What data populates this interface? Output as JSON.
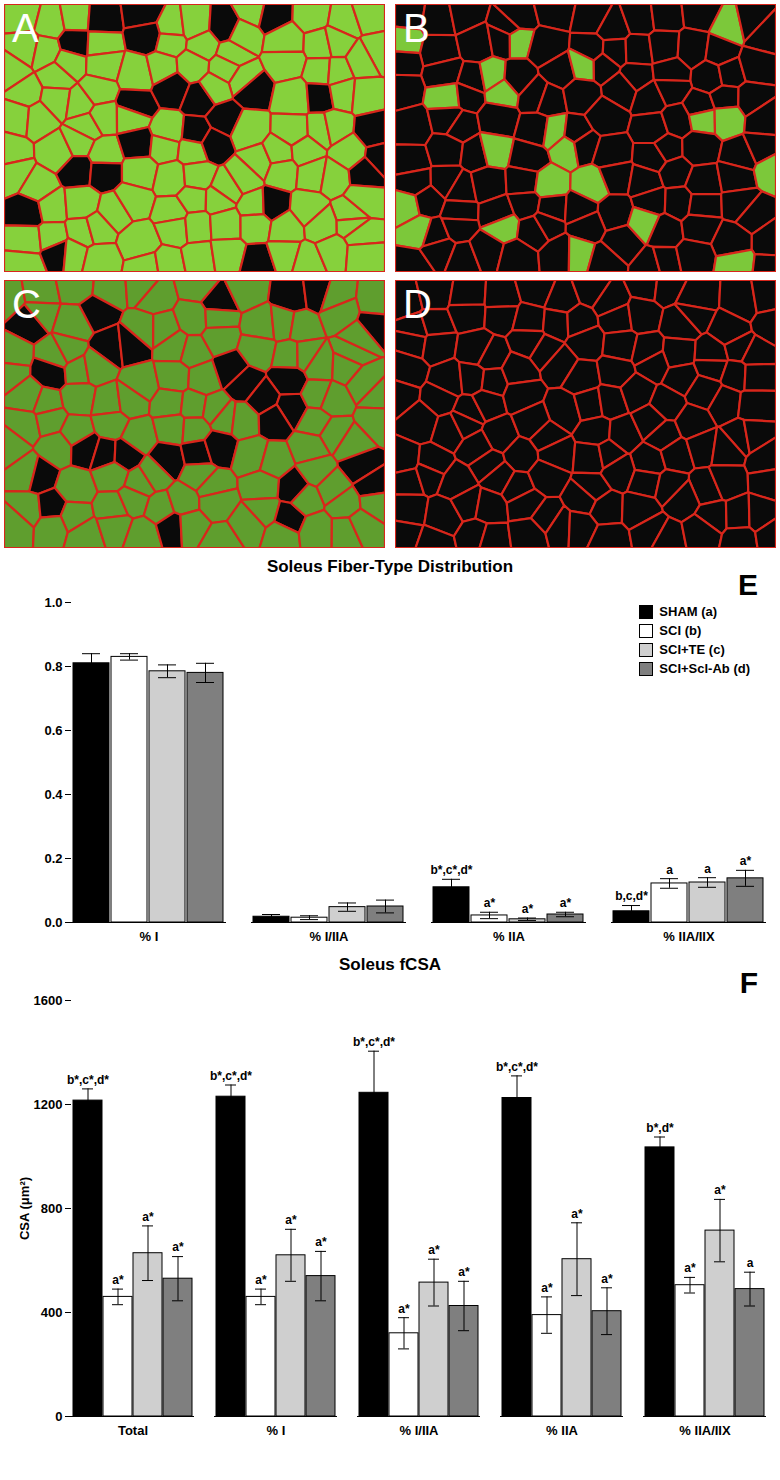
{
  "panels": {
    "labels": [
      "A",
      "B",
      "C",
      "D"
    ]
  },
  "chart_data": [
    {
      "type": "bar",
      "panel_label": "E",
      "title": "Soleus Fiber-Type Distribution",
      "categories": [
        "% I",
        "% I/IIA",
        "% IIA",
        "% IIA/IIX"
      ],
      "series": [
        {
          "name": "SHAM (a)",
          "color": "#000000",
          "values": [
            0.81,
            0.018,
            0.11,
            0.035
          ],
          "errors": [
            0.03,
            0.007,
            0.025,
            0.018
          ],
          "annotations": [
            null,
            null,
            "b*,c*,d*",
            "b,c,d*"
          ]
        },
        {
          "name": "SCI (b)",
          "color": "#ffffff",
          "values": [
            0.83,
            0.015,
            0.022,
            0.122
          ],
          "errors": [
            0.01,
            0.006,
            0.01,
            0.015
          ],
          "annotations": [
            null,
            null,
            "a*",
            "a"
          ]
        },
        {
          "name": "SCI+TE (c)",
          "color": "#cfcfcf",
          "values": [
            0.785,
            0.048,
            0.01,
            0.125
          ],
          "errors": [
            0.02,
            0.013,
            0.004,
            0.015
          ],
          "annotations": [
            null,
            null,
            "a*",
            "a"
          ]
        },
        {
          "name": "SCI+Scl-Ab (d)",
          "color": "#7f7f7f",
          "values": [
            0.78,
            0.05,
            0.025,
            0.138
          ],
          "errors": [
            0.03,
            0.02,
            0.007,
            0.025
          ],
          "annotations": [
            null,
            null,
            "a*",
            "a*"
          ]
        }
      ],
      "ylim": [
        0,
        1
      ],
      "yticks": [
        {
          "value": 0,
          "label": "0.0"
        },
        {
          "value": 0.2,
          "label": "0.2"
        },
        {
          "value": 0.4,
          "label": "0.4"
        },
        {
          "value": 0.6,
          "label": "0.6"
        },
        {
          "value": 0.8,
          "label": "0.8"
        },
        {
          "value": 1,
          "label": "1.0"
        }
      ],
      "legend": "top-right"
    },
    {
      "type": "bar",
      "panel_label": "F",
      "title": "Soleus fCSA",
      "y_label": "CSA (μm²)",
      "categories": [
        "Total",
        "% I",
        "% I/IIA",
        "% IIA",
        "% IIA/IIX"
      ],
      "series": [
        {
          "name": "SHAM (a)",
          "color": "#000000",
          "values": [
            1215,
            1230,
            1245,
            1225,
            1035
          ],
          "errors": [
            45,
            45,
            160,
            85,
            40
          ],
          "annotations": [
            "b*,c*,d*",
            "b*,c*,d*",
            "b*,c*,d*",
            "b*,c*,d*",
            "b*,d*"
          ]
        },
        {
          "name": "SCI (b)",
          "color": "#ffffff",
          "values": [
            460,
            460,
            320,
            390,
            505
          ],
          "errors": [
            30,
            30,
            60,
            70,
            30
          ],
          "annotations": [
            "a*",
            "a*",
            "a*",
            "a*",
            "a*"
          ]
        },
        {
          "name": "SCI+TE (c)",
          "color": "#cfcfcf",
          "values": [
            628,
            620,
            515,
            605,
            715
          ],
          "errors": [
            105,
            100,
            90,
            140,
            120
          ],
          "annotations": [
            "a*",
            "a*",
            "a*",
            "a*",
            "a*"
          ]
        },
        {
          "name": "SCI+Scl-Ab (d)",
          "color": "#7f7f7f",
          "values": [
            530,
            540,
            425,
            405,
            490
          ],
          "errors": [
            85,
            95,
            95,
            90,
            65
          ],
          "annotations": [
            "a*",
            "a*",
            "a*",
            "a*",
            "a"
          ]
        }
      ],
      "ylim": [
        0,
        1600
      ],
      "yticks": [
        0,
        400,
        800,
        1200,
        1600
      ]
    }
  ]
}
